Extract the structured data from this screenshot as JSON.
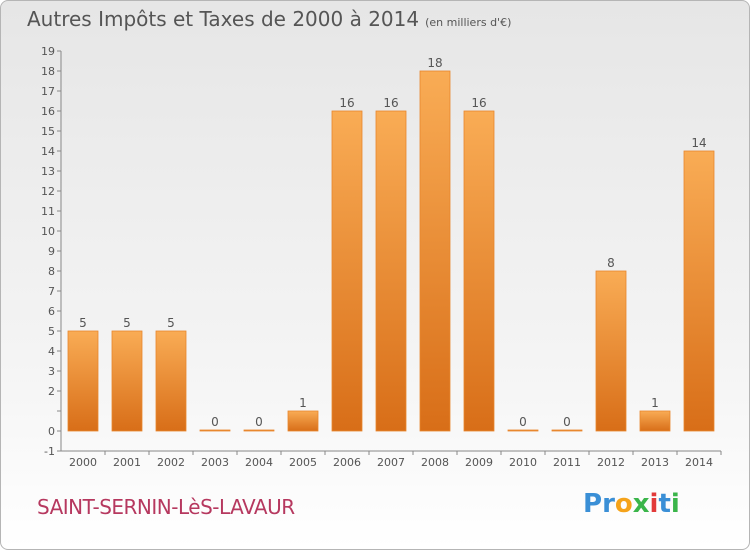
{
  "title": "Autres Impôts et Taxes de 2000 à 2014",
  "unit_note": "(en milliers d'€)",
  "commune": "SAINT-SERNIN-LèS-LAVAUR",
  "logo": {
    "text": "Proxiti",
    "letters": [
      "P",
      "r",
      "o",
      "x",
      "i",
      "t",
      "i"
    ],
    "colors": [
      "#3a8fd6",
      "#3a8fd6",
      "#f5a31a",
      "#3ab54a",
      "#e23a3a",
      "#3a8fd6",
      "#3ab54a"
    ]
  },
  "colors": {
    "bar_light": "#f9ac55",
    "bar_dark": "#d86e18",
    "text": "#555555",
    "commune": "#b6385f"
  },
  "chart_data": {
    "type": "bar",
    "title": "Autres Impôts et Taxes de 2000 à 2014",
    "subtitle": "(en milliers d'€)",
    "categories": [
      "2000",
      "2001",
      "2002",
      "2003",
      "2004",
      "2005",
      "2006",
      "2007",
      "2008",
      "2009",
      "2010",
      "2011",
      "2012",
      "2013",
      "2014"
    ],
    "values": [
      5,
      5,
      5,
      0,
      0,
      1,
      16,
      16,
      18,
      16,
      0,
      0,
      8,
      1,
      14
    ],
    "data_labels": [
      "5",
      "5",
      "5",
      "0",
      "0",
      "1",
      "16",
      "16",
      "18",
      "16",
      "0",
      "0",
      "8",
      "1",
      "14"
    ],
    "ylim": [
      -1,
      19
    ],
    "yticks": [
      -1,
      0,
      1,
      2,
      3,
      4,
      5,
      6,
      7,
      8,
      9,
      10,
      11,
      12,
      13,
      14,
      15,
      16,
      17,
      18,
      19
    ],
    "ytick_labels": [
      "-1",
      "0",
      "",
      "2",
      "3",
      "4",
      "5",
      "6",
      "7",
      "8",
      "9",
      "10",
      "11",
      "12",
      "13",
      "14",
      "15",
      "16",
      "17",
      "18",
      "19"
    ],
    "grid": false
  }
}
